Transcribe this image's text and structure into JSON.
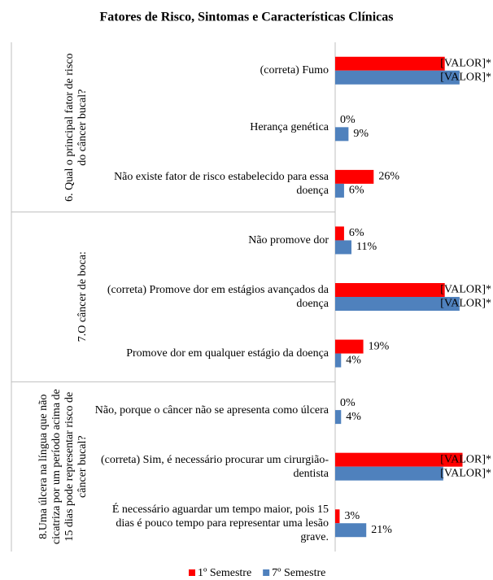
{
  "chart_data": {
    "type": "bar",
    "orientation": "horizontal",
    "title": "Fatores de Risco, Sintomas e Características Clínicas",
    "groups": [
      {
        "label": "6. Qual o principal fator de risco do câncer bucal?",
        "categories": [
          "(correta) Fumo",
          "Herança genética",
          "Não existe fator de risco estabelecido para essa doença"
        ]
      },
      {
        "label": "7.O câncer de boca:",
        "categories": [
          "Não promove dor",
          "(correta) Promove dor em estágios avançados da doença",
          "Promove dor em qualquer estágio da doença"
        ]
      },
      {
        "label": "8.Uma úlcera na língua que não cicatriza por um período acima de 15 dias pode representar risco de câncer bucal?",
        "categories": [
          "Não, porque o câncer não se apresenta como úlcera",
          "(correta) Sim, é necessário procurar um cirurgião-dentista",
          "É necessário aguardar um tempo maior, pois 15 dias é pouco tempo para representar uma lesão grave."
        ]
      }
    ],
    "series": [
      {
        "name": "1º Semestre",
        "color": "#ff0000",
        "values": [
          74,
          0,
          26,
          6,
          74,
          19,
          0,
          86,
          3
        ],
        "value_labels": [
          "[VALOR]*",
          "0%",
          "26%",
          "6%",
          "[VALOR]*",
          "19%",
          "0%",
          "[VALOR]*",
          "3%"
        ]
      },
      {
        "name": "7º Semestre",
        "color": "#4f81bd",
        "values": [
          84,
          9,
          6,
          11,
          84,
          4,
          4,
          73,
          21
        ],
        "value_labels": [
          "[VALOR]*",
          "9%",
          "6%",
          "11%",
          "[VALOR]*",
          "4%",
          "4%",
          "[VALOR]*",
          "21%"
        ]
      }
    ],
    "xlim": [
      0,
      100
    ],
    "legend": "bottom"
  }
}
